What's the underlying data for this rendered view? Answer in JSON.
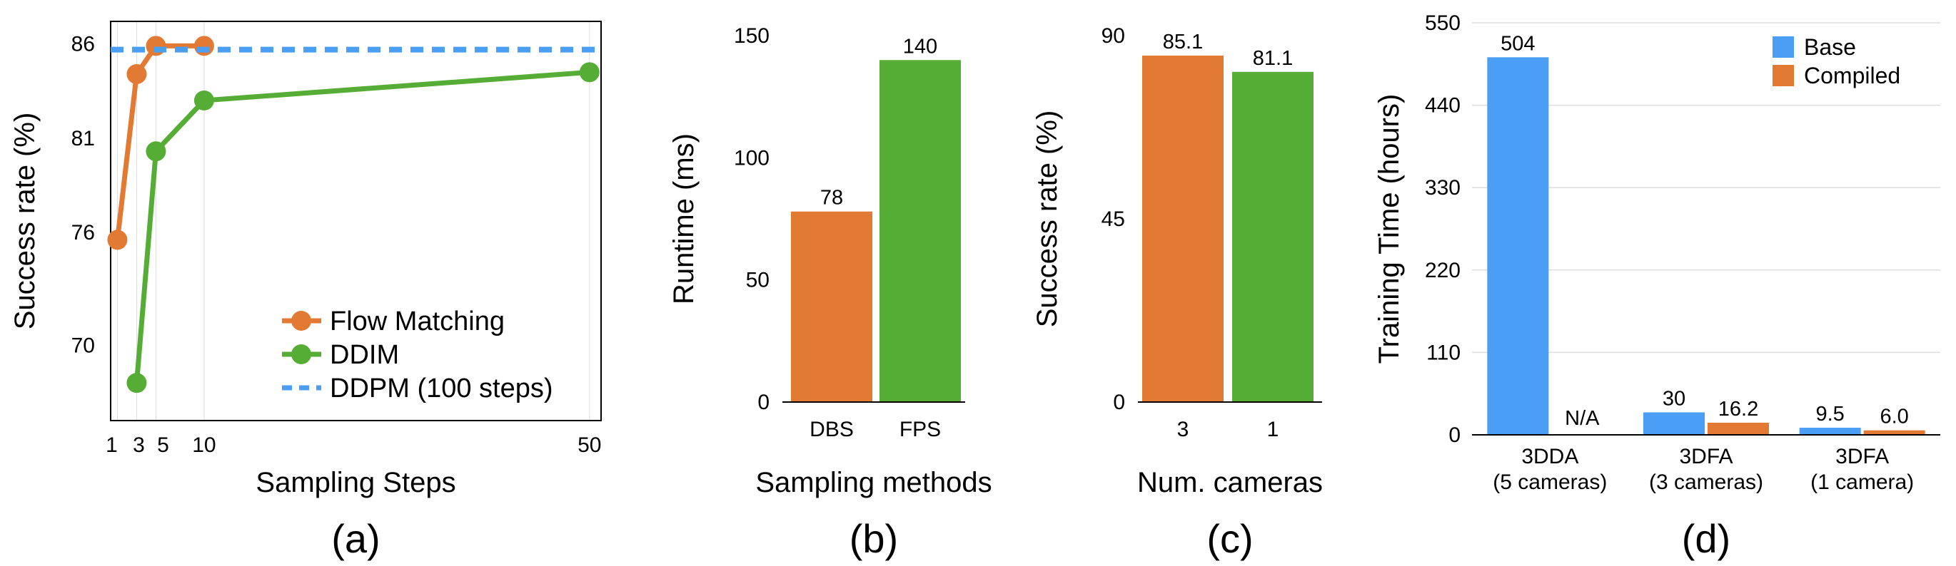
{
  "colors": {
    "orange": "#E37A33",
    "green": "#55AD35",
    "blue": "#4A9FF5",
    "grid": "#DDDDDD",
    "axis": "#000000"
  },
  "chart_data": [
    {
      "panel_label": "(a)",
      "type": "line",
      "xlabel": "Sampling Steps",
      "ylabel": "Success rate (%)",
      "x_ticks": [
        "1",
        "3",
        "5",
        "10",
        "50"
      ],
      "y_ticks": [
        "70",
        "76",
        "81",
        "86"
      ],
      "xlim": [
        0.3,
        51.2
      ],
      "ylim": [
        66.0,
        87.2
      ],
      "grid": "vertical",
      "legend_position": "lower-right",
      "series": [
        {
          "name": "Flow Matching",
          "color": "#E37A33",
          "style": "line-marker",
          "x": [
            1,
            3,
            5,
            10
          ],
          "y": [
            75.6,
            84.4,
            85.9,
            85.9
          ]
        },
        {
          "name": "DDIM",
          "color": "#55AD35",
          "style": "line-marker",
          "x": [
            3,
            5,
            10,
            50
          ],
          "y": [
            68.0,
            80.3,
            83.0,
            84.5
          ]
        },
        {
          "name": "DDPM (100 steps)",
          "color": "#4A9FF5",
          "style": "dashed-hline",
          "y": 85.7
        }
      ]
    },
    {
      "panel_label": "(b)",
      "type": "bar",
      "xlabel": "Sampling methods",
      "ylabel": "Runtime (ms)",
      "categories": [
        "DBS",
        "FPS"
      ],
      "values": [
        78,
        140
      ],
      "value_labels": [
        "78",
        "140"
      ],
      "bar_colors": [
        "#E37A33",
        "#55AD35"
      ],
      "y_ticks": [
        "0",
        "50",
        "100",
        "150"
      ],
      "ylim": [
        0,
        150
      ]
    },
    {
      "panel_label": "(c)",
      "type": "bar",
      "xlabel": "Num. cameras",
      "ylabel": "Success rate (%)",
      "categories": [
        "3",
        "1"
      ],
      "values": [
        85.1,
        81.1
      ],
      "value_labels": [
        "85.1",
        "81.1"
      ],
      "bar_colors": [
        "#E37A33",
        "#55AD35"
      ],
      "y_ticks": [
        "0",
        "45",
        "90"
      ],
      "ylim": [
        0,
        90
      ]
    },
    {
      "panel_label": "(d)",
      "type": "bar",
      "xlabel": "",
      "ylabel": "Training Time (hours)",
      "categories": [
        [
          "3DDA",
          "(5 cameras)"
        ],
        [
          "3DFA",
          "(3 cameras)"
        ],
        [
          "3DFA",
          "(1 camera)"
        ]
      ],
      "series": [
        {
          "name": "Base",
          "color": "#4A9FF5",
          "values": [
            504,
            30,
            9.5
          ],
          "value_labels": [
            "504",
            "30",
            "9.5"
          ]
        },
        {
          "name": "Compiled",
          "color": "#E37A33",
          "values": [
            null,
            16.2,
            6.0
          ],
          "value_labels": [
            "N/A",
            "16.2",
            "6.0"
          ]
        }
      ],
      "y_ticks": [
        "0",
        "110",
        "220",
        "330",
        "440",
        "550"
      ],
      "ylim": [
        0,
        550
      ],
      "grid": "horizontal",
      "legend_position": "top-right"
    }
  ]
}
